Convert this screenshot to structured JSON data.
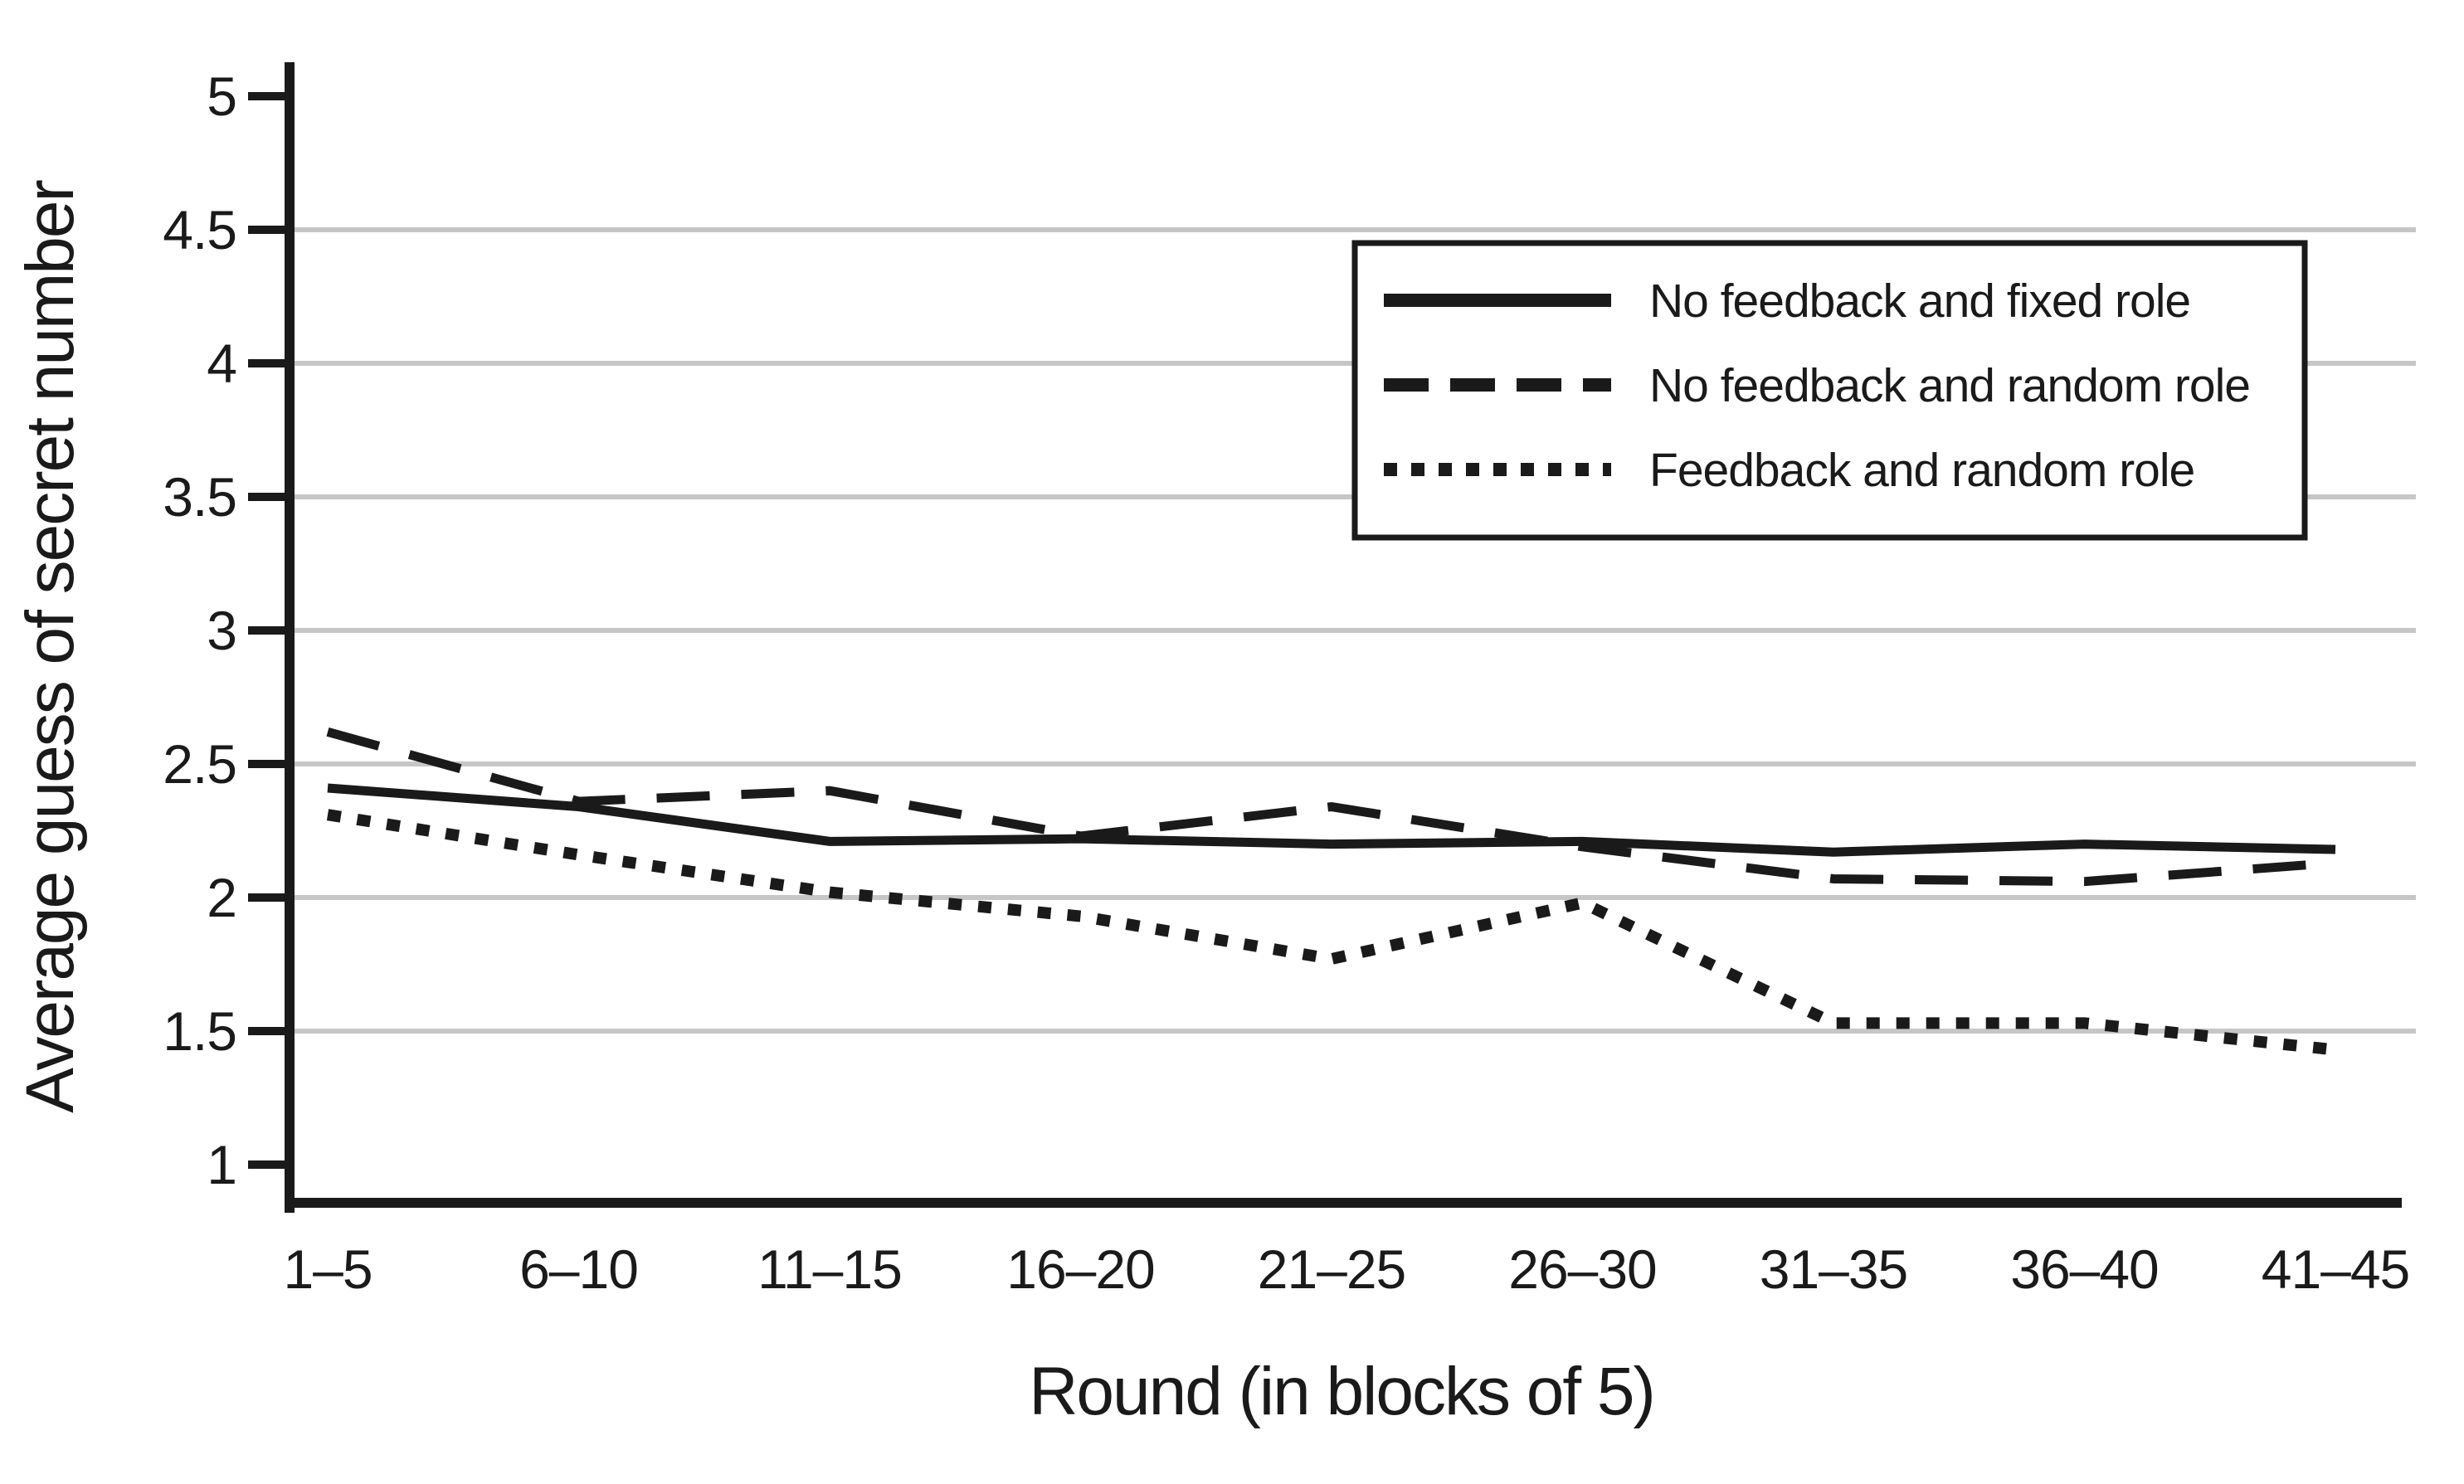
{
  "chart_data": {
    "type": "line",
    "title": "",
    "xlabel": "Round (in blocks of 5)",
    "ylabel": "Average guess of secret number",
    "categories": [
      "1–5",
      "6–10",
      "11–15",
      "16–20",
      "21–25",
      "26–30",
      "31–35",
      "36–40",
      "41–45"
    ],
    "series": [
      {
        "name": "No feedback and fixed role",
        "style": "solid",
        "values": [
          2.41,
          2.34,
          2.21,
          2.22,
          2.2,
          2.21,
          2.17,
          2.2,
          2.18
        ]
      },
      {
        "name": "No feedback and random role",
        "style": "dashed",
        "values": [
          2.62,
          2.36,
          2.4,
          2.23,
          2.34,
          2.19,
          2.07,
          2.06,
          2.13
        ]
      },
      {
        "name": "Feedback and random role",
        "style": "dotted",
        "values": [
          2.31,
          2.16,
          2.02,
          1.93,
          1.77,
          1.98,
          1.53,
          1.53,
          1.43
        ]
      }
    ],
    "ylim": [
      1,
      5
    ],
    "yticks": [
      1,
      1.5,
      2,
      2.5,
      3,
      3.5,
      4,
      4.5,
      5
    ],
    "gridlines_at": [
      1.5,
      2,
      2.5,
      3,
      3.5,
      4,
      4.5
    ],
    "grid": "horizontal-only",
    "legend_position": "upper-right",
    "colors": {
      "line": "#1a1a1a",
      "grid": "#c6c6c6",
      "axis": "#1a1a1a",
      "background": "#ffffff",
      "legend_border": "#1a1a1a",
      "legend_fill": "#ffffff"
    }
  }
}
